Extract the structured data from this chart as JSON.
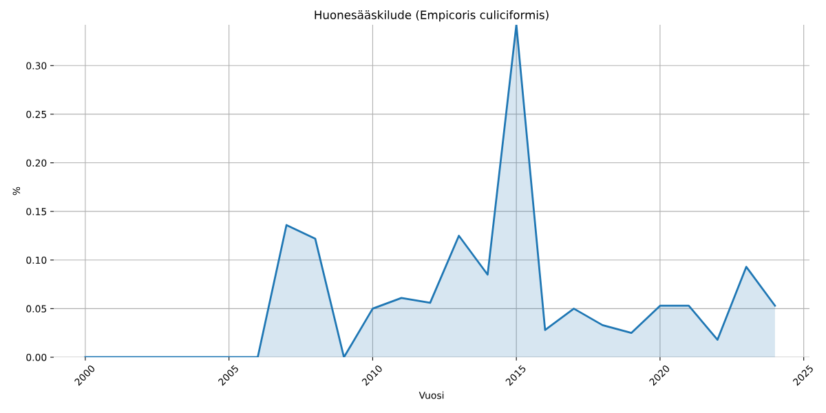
{
  "chart_data": {
    "type": "area",
    "title": "Huonesääskilude (Empicoris culiciformis)",
    "xlabel": "Vuosi",
    "ylabel": "%",
    "x": [
      2000,
      2001,
      2002,
      2003,
      2004,
      2005,
      2006,
      2007,
      2008,
      2009,
      2010,
      2011,
      2012,
      2013,
      2014,
      2015,
      2016,
      2017,
      2018,
      2019,
      2020,
      2021,
      2022,
      2023,
      2024
    ],
    "series": [
      {
        "color": "#1f77b4",
        "values": [
          0,
          0,
          0,
          0,
          0,
          0,
          0,
          0.136,
          0.122,
          0,
          0.05,
          0.061,
          0.056,
          0.125,
          0.085,
          0.342,
          0.028,
          0.05,
          0.033,
          0.025,
          0.053,
          0.053,
          0.018,
          0.093,
          0.053
        ]
      }
    ],
    "xlim": [
      1998.9,
      2025.2
    ],
    "ylim": [
      0,
      0.342
    ],
    "xticks": [
      2000,
      2005,
      2010,
      2015,
      2020,
      2025
    ],
    "yticks": [
      {
        "value": 0,
        "label": "0.00"
      },
      {
        "value": 0.05,
        "label": "0.05"
      },
      {
        "value": 0.1,
        "label": "0.10"
      },
      {
        "value": 0.15,
        "label": "0.15"
      },
      {
        "value": 0.2,
        "label": "0.20"
      },
      {
        "value": 0.25,
        "label": "0.25"
      },
      {
        "value": 0.3,
        "label": "0.30"
      }
    ],
    "grid": true,
    "legend": false
  }
}
